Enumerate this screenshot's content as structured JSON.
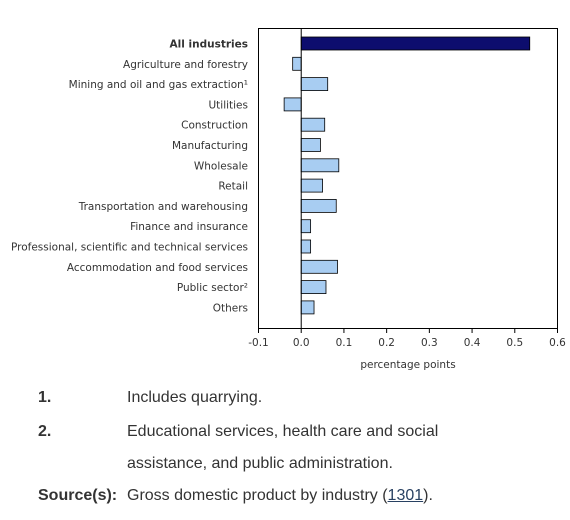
{
  "chart_data": {
    "type": "bar",
    "orientation": "horizontal",
    "title": "",
    "xlabel": "percentage points",
    "ylabel": "",
    "xlim": [
      -0.1,
      0.6
    ],
    "xticks": [
      "-0.1",
      "0.0",
      "0.1",
      "0.2",
      "0.3",
      "0.4",
      "0.5",
      "0.6"
    ],
    "xtick_values": [
      -0.1,
      0.0,
      0.1,
      0.2,
      0.3,
      0.4,
      0.5,
      0.6
    ],
    "grid": false,
    "categories": [
      "All industries",
      "Agriculture and forestry",
      "Mining and oil and gas extraction¹",
      "Utilities",
      "Construction",
      "Manufacturing",
      "Wholesale",
      "Retail",
      "Transportation and warehousing",
      "Finance and insurance",
      "Professional, scientific and technical services",
      "Accommodation and food services",
      "Public sector²",
      "Others"
    ],
    "values": [
      0.535,
      -0.02,
      0.062,
      -0.04,
      0.055,
      0.045,
      0.088,
      0.05,
      0.082,
      0.022,
      0.022,
      0.085,
      0.058,
      0.03
    ],
    "highlight_category": "All industries",
    "colors": {
      "total": "#0d0d6e",
      "bar": "#a8cdf2",
      "outline": "#000000"
    }
  },
  "notes": [
    {
      "number": "1.",
      "text": "Includes quarrying."
    },
    {
      "number": "2.",
      "text": "Educational services, health care and social assistance, and public administration."
    }
  ],
  "source": {
    "label": "Source(s):",
    "text_before": "Gross domestic product by industry (",
    "link_text": "1301",
    "text_after": ")."
  }
}
